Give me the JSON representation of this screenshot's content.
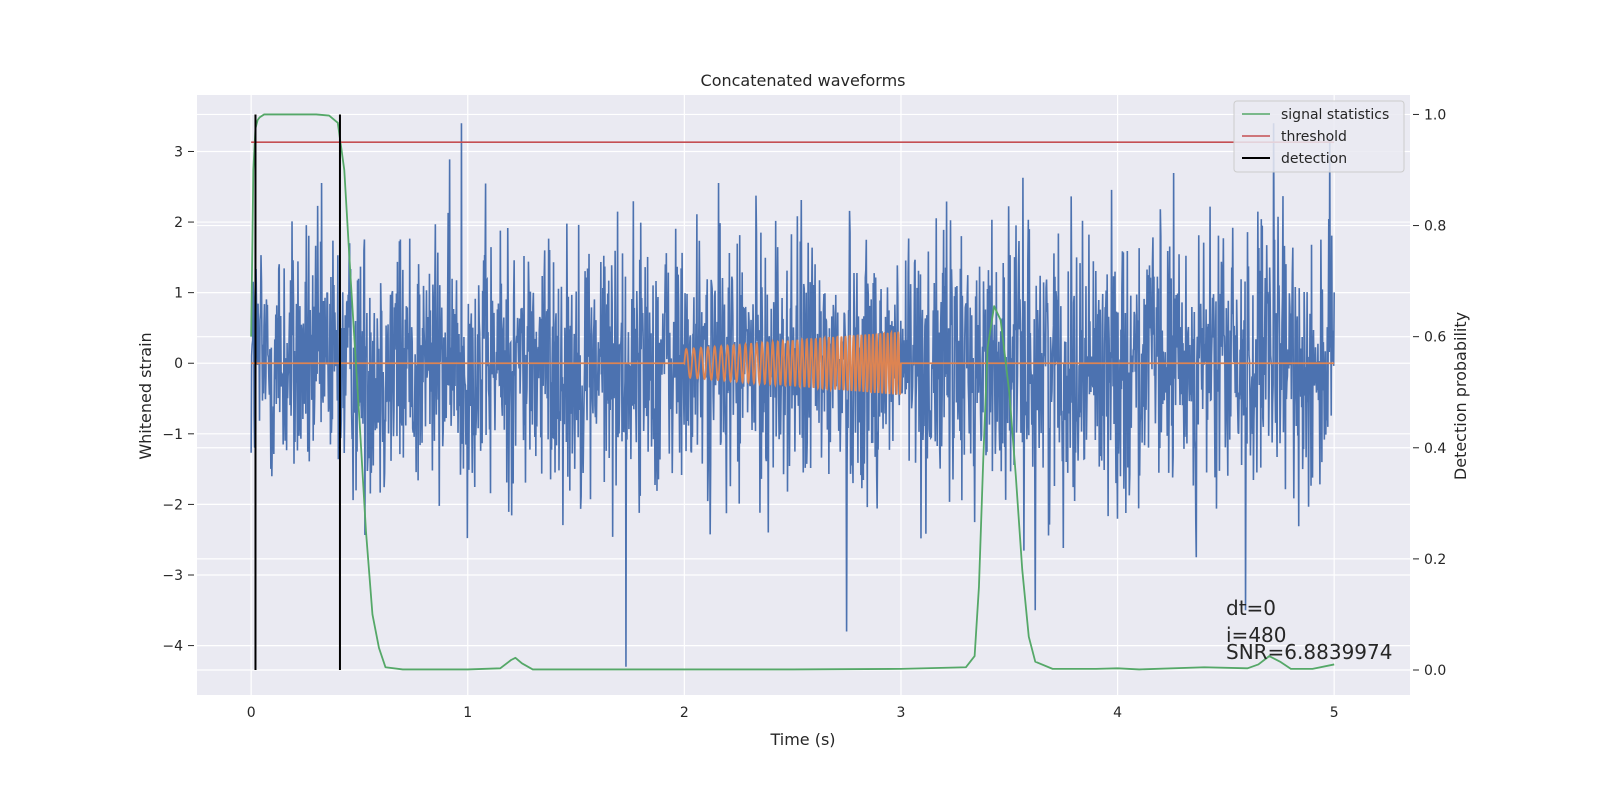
{
  "chart_data": {
    "type": "line",
    "title": "Concatenated waveforms",
    "xlabel": "Time (s)",
    "ylabel": "Whitened strain",
    "ylabel_right": "Detection probability",
    "xlim": [
      -0.25,
      5.35
    ],
    "ylim": [
      -4.7,
      3.8
    ],
    "ylim_right": [
      -0.045,
      1.035
    ],
    "xticks": [
      0,
      1,
      2,
      3,
      4,
      5
    ],
    "xtick_labels": [
      "0",
      "1",
      "2",
      "3",
      "4",
      "5"
    ],
    "yticks": [
      3,
      2,
      1,
      0,
      -1,
      -2,
      -3,
      -4
    ],
    "ytick_labels": [
      "3",
      "2",
      "1",
      "0",
      "−1",
      "−2",
      "−3",
      "−4"
    ],
    "yticks_right": [
      1.0,
      0.8,
      0.6,
      0.4,
      0.2,
      0.0
    ],
    "ytick_labels_right": [
      "1.0",
      "0.8",
      "0.6",
      "0.4",
      "0.2",
      "0.0"
    ],
    "grid": true,
    "legend_position": "top-right",
    "legend": [
      "signal statistics",
      "threshold",
      "detection"
    ],
    "colors": {
      "background": "#eaeaf2",
      "grid": "#ffffff",
      "noise": "#4c72b0",
      "injection": "#dd8452",
      "signal_statistics": "#55a868",
      "threshold": "#c44e52",
      "detection": "#000000"
    },
    "series": [
      {
        "name": "",
        "axis": "left",
        "description_kind": "whitened strain noise",
        "x_range": [
          0,
          5
        ],
        "typical_range": [
          -1.5,
          1.6
        ],
        "peaks": [
          [
            0.97,
            3.4
          ],
          [
            4.72,
            3.4
          ],
          [
            4.98,
            3.2
          ],
          [
            1.73,
            -4.3
          ],
          [
            2.75,
            -3.8
          ],
          [
            4.59,
            -3.5
          ],
          [
            3.62,
            -3.5
          ]
        ]
      },
      {
        "name": "",
        "axis": "left",
        "description_kind": "injected chirp",
        "x_range": [
          0,
          5
        ],
        "chirp_x": [
          2.0,
          3.0
        ],
        "chirp_amplitude": [
          0.2,
          0.45
        ]
      },
      {
        "name": "signal statistics",
        "axis": "right",
        "x": [
          0,
          0.01,
          0.02,
          0.03,
          0.04,
          0.06,
          0.1,
          0.2,
          0.3,
          0.36,
          0.4,
          0.43,
          0.46,
          0.5,
          0.53,
          0.56,
          0.59,
          0.62,
          0.7,
          1.0,
          1.15,
          1.2,
          1.22,
          1.25,
          1.3,
          1.5,
          2.0,
          2.5,
          3.0,
          3.3,
          3.34,
          3.36,
          3.38,
          3.4,
          3.43,
          3.46,
          3.5,
          3.53,
          3.56,
          3.59,
          3.62,
          3.7,
          3.9,
          4.0,
          4.1,
          4.4,
          4.6,
          4.65,
          4.7,
          4.75,
          4.8,
          4.9,
          5.0
        ],
        "y": [
          0.6,
          0.9,
          0.975,
          0.99,
          0.995,
          1.0,
          1.0,
          1.0,
          1.0,
          0.998,
          0.985,
          0.9,
          0.7,
          0.45,
          0.25,
          0.1,
          0.04,
          0.005,
          0.001,
          0.001,
          0.003,
          0.018,
          0.022,
          0.012,
          0.001,
          0.001,
          0.001,
          0.001,
          0.002,
          0.005,
          0.025,
          0.15,
          0.38,
          0.58,
          0.655,
          0.63,
          0.5,
          0.35,
          0.18,
          0.06,
          0.015,
          0.002,
          0.002,
          0.003,
          0.001,
          0.005,
          0.003,
          0.01,
          0.025,
          0.015,
          0.002,
          0.002,
          0.01
        ]
      },
      {
        "name": "threshold",
        "axis": "right",
        "x": [
          0,
          5
        ],
        "y": [
          0.95,
          0.95
        ]
      },
      {
        "name": "detection",
        "axis": "right",
        "vlines": [
          0.02,
          0.41
        ],
        "y": [
          0,
          1
        ]
      }
    ],
    "annotations": [
      "dt=0",
      "i=480",
      "SNR=6.8839974"
    ]
  }
}
